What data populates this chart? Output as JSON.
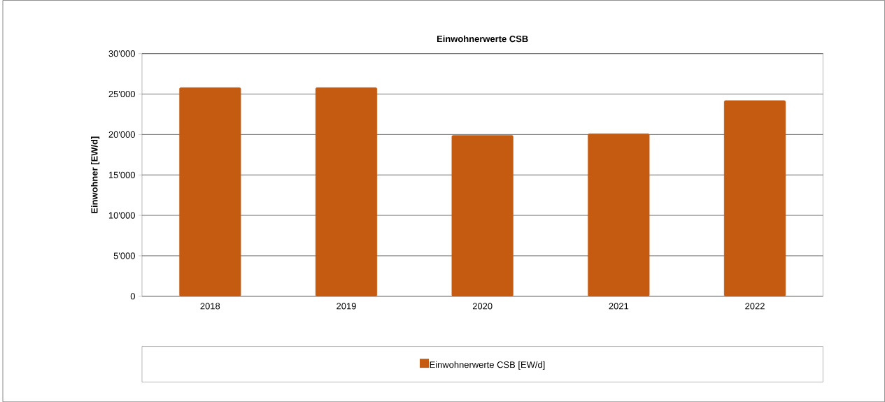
{
  "chart_data": {
    "type": "bar",
    "title": "Einwohnerwerte CSB",
    "ylabel": "Einwohner [EW/d]",
    "categories": [
      "2018",
      "2019",
      "2020",
      "2021",
      "2022"
    ],
    "series": [
      {
        "name": "Einwohnerwerte CSB [EW/d]",
        "color": "#c55a11",
        "values": [
          25800,
          25800,
          19900,
          20100,
          24200
        ]
      }
    ],
    "ylim": [
      0,
      30000
    ],
    "yticks": [
      {
        "value": 0,
        "label": "0"
      },
      {
        "value": 5000,
        "label": "5'000"
      },
      {
        "value": 10000,
        "label": "10'000"
      },
      {
        "value": 15000,
        "label": "15'000"
      },
      {
        "value": 20000,
        "label": "20'000"
      },
      {
        "value": 25000,
        "label": "25'000"
      },
      {
        "value": 30000,
        "label": "30'000"
      }
    ],
    "grid": "y",
    "legend": "bottom"
  }
}
